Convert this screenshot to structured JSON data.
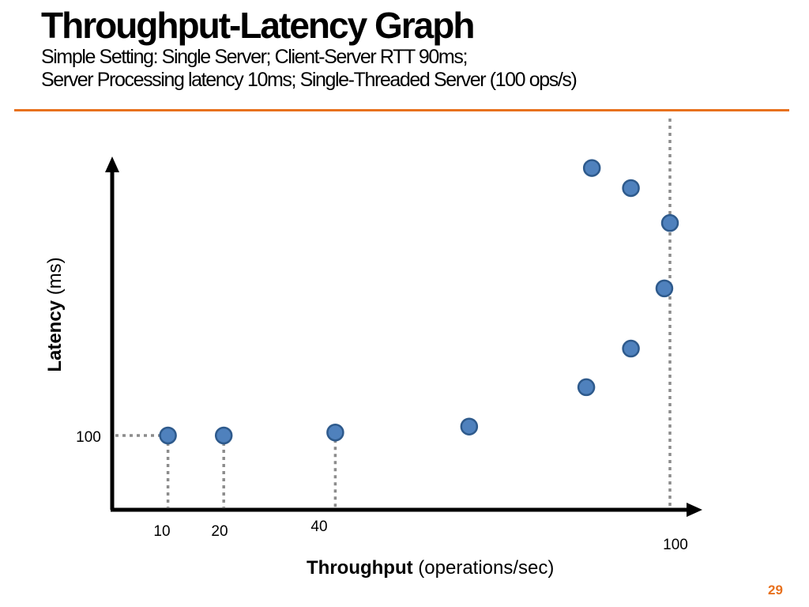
{
  "slide": {
    "title": "Throughput-Latency Graph",
    "subtitle_lines": [
      "Simple Setting: Single Server; Client-Server RTT 90ms;",
      "Server Processing latency 10ms; Single-Threaded Server (100 ops/s)"
    ],
    "page_number": "29",
    "accent_color": "#E8711E"
  },
  "chart_data": {
    "type": "scatter",
    "xlabel_bold": "Throughput",
    "xlabel_rest": " (operations/sec)",
    "ylabel_bold": "Latency",
    "ylabel_rest": " (ms)",
    "xlim": [
      0,
      110
    ],
    "ylim": [
      0,
      510
    ],
    "x_tick_labels": {
      "10": "10",
      "20": "20",
      "40": "40",
      "100": "100"
    },
    "y_tick_labels": {
      "100": "100"
    },
    "max_throughput_line": 100,
    "marked_points": [
      10,
      20,
      40
    ],
    "grid": false,
    "legend": "none",
    "point_color": "#4F81BD",
    "point_edge_color": "#2E5A8C",
    "points": [
      {
        "x": 10,
        "y": 100
      },
      {
        "x": 20,
        "y": 100
      },
      {
        "x": 40,
        "y": 104
      },
      {
        "x": 64,
        "y": 112
      },
      {
        "x": 85,
        "y": 165
      },
      {
        "x": 93,
        "y": 217
      },
      {
        "x": 99,
        "y": 298
      },
      {
        "x": 100,
        "y": 386
      },
      {
        "x": 93,
        "y": 433
      },
      {
        "x": 86,
        "y": 460
      }
    ]
  }
}
